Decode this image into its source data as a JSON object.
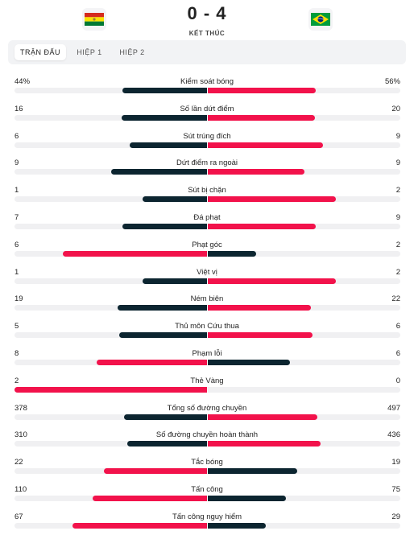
{
  "match": {
    "home_score": "0",
    "separator": "-",
    "away_score": "4",
    "status": "KẾT THÚC",
    "home_flag": "bolivia-flag",
    "away_flag": "brazil-flag"
  },
  "tabs": [
    {
      "label": "TRẬN ĐẤU",
      "active": true
    },
    {
      "label": "HIỆP 1",
      "active": false
    },
    {
      "label": "HIỆP 2",
      "active": false
    }
  ],
  "colors": {
    "lead": "#f2124b",
    "trail": "#0c2530",
    "track": "#f0f0f2"
  },
  "stats": [
    {
      "name": "Kiểm soát bóng",
      "home": "44%",
      "away": "56%",
      "home_value": 44,
      "away_value": 56
    },
    {
      "name": "Số lần dứt điểm",
      "home": "16",
      "away": "20",
      "home_value": 16,
      "away_value": 20
    },
    {
      "name": "Sút trúng đích",
      "home": "6",
      "away": "9",
      "home_value": 6,
      "away_value": 9
    },
    {
      "name": "Dứt điểm ra ngoài",
      "home": "9",
      "away": "9",
      "home_value": 9,
      "away_value": 9
    },
    {
      "name": "Sút bị chặn",
      "home": "1",
      "away": "2",
      "home_value": 1,
      "away_value": 2
    },
    {
      "name": "Đá phạt",
      "home": "7",
      "away": "9",
      "home_value": 7,
      "away_value": 9
    },
    {
      "name": "Phạt góc",
      "home": "6",
      "away": "2",
      "home_value": 6,
      "away_value": 2
    },
    {
      "name": "Việt vị",
      "home": "1",
      "away": "2",
      "home_value": 1,
      "away_value": 2
    },
    {
      "name": "Ném biên",
      "home": "19",
      "away": "22",
      "home_value": 19,
      "away_value": 22
    },
    {
      "name": "Thủ môn Cứu thua",
      "home": "5",
      "away": "6",
      "home_value": 5,
      "away_value": 6
    },
    {
      "name": "Phạm lỗi",
      "home": "8",
      "away": "6",
      "home_value": 8,
      "away_value": 6
    },
    {
      "name": "Thẻ Vàng",
      "home": "2",
      "away": "0",
      "home_value": 2,
      "away_value": 0
    },
    {
      "name": "Tổng số đường chuyền",
      "home": "378",
      "away": "497",
      "home_value": 378,
      "away_value": 497
    },
    {
      "name": "Số đường chuyền hoàn thành",
      "home": "310",
      "away": "436",
      "home_value": 310,
      "away_value": 436
    },
    {
      "name": "Tắc bóng",
      "home": "22",
      "away": "19",
      "home_value": 22,
      "away_value": 19
    },
    {
      "name": "Tấn công",
      "home": "110",
      "away": "75",
      "home_value": 110,
      "away_value": 75
    },
    {
      "name": "Tấn công nguy hiểm",
      "home": "67",
      "away": "29",
      "home_value": 67,
      "away_value": 29
    }
  ]
}
